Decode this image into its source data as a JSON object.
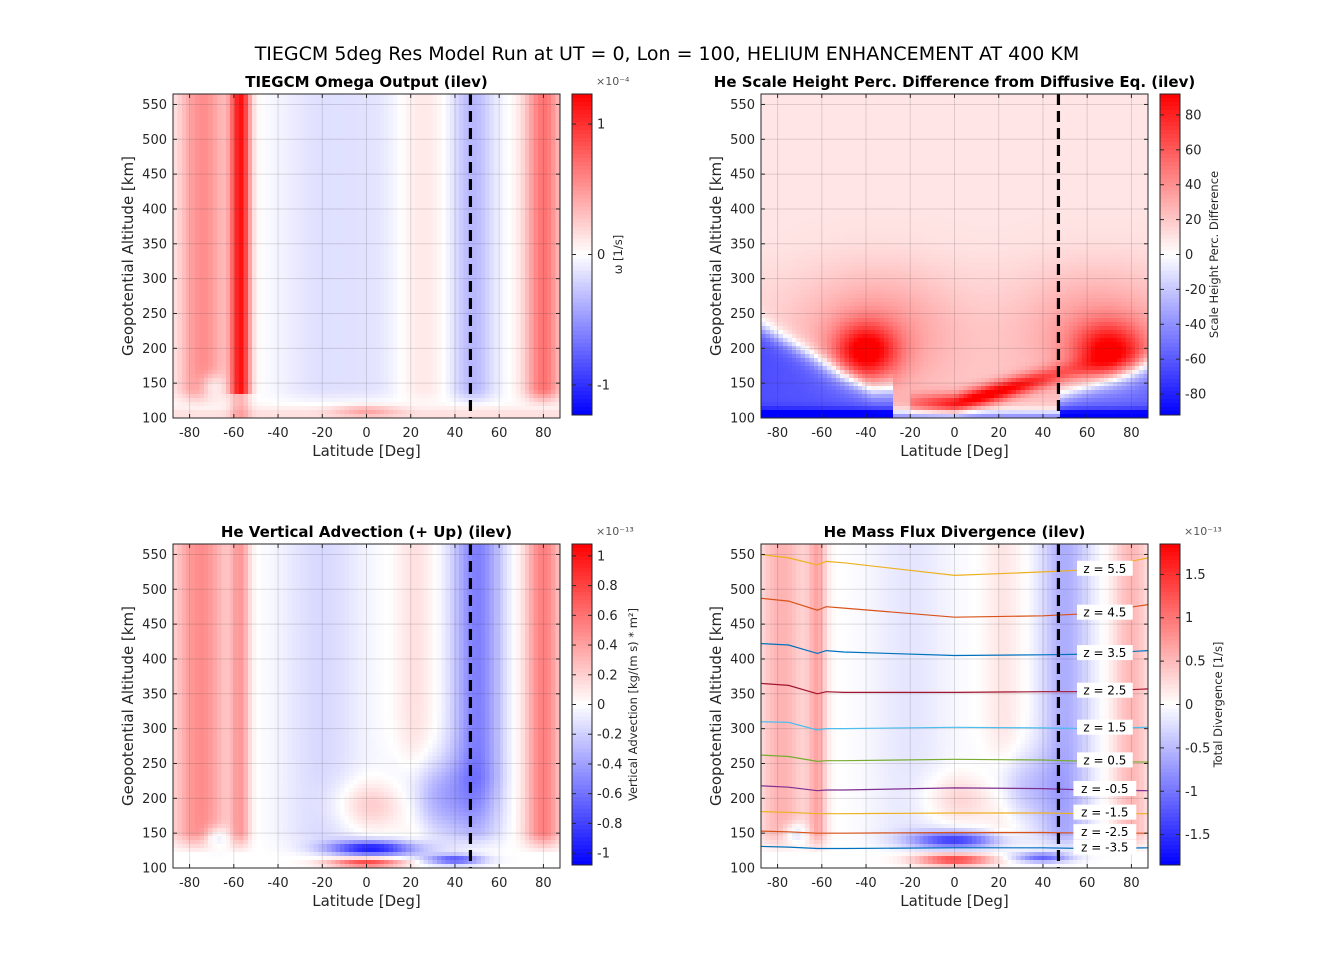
{
  "figure": {
    "title": "TIEGCM 5deg Res Model Run at UT = 0, Lon = 100, HELIUM ENHANCEMENT AT 400 KM"
  },
  "chart_data": [
    {
      "type": "heatmap",
      "title": "TIEGCM Omega Output (ilev)",
      "xlabel": "Latitude [Deg]",
      "ylabel": "Geopotential Altitude [km]",
      "xlim": [
        -87.5,
        87.5
      ],
      "ylim": [
        100,
        565
      ],
      "xticks": [
        -80,
        -60,
        -40,
        -20,
        0,
        20,
        40,
        60,
        80
      ],
      "yticks": [
        100,
        150,
        200,
        250,
        300,
        350,
        400,
        450,
        500,
        550
      ],
      "grid": true,
      "colormap": "blue-white-red",
      "colorbar": {
        "label": "ω [1/s]",
        "exponent": "×10⁻⁴",
        "ticks": [
          -1,
          0,
          1
        ],
        "clim": [
          -1.23,
          1.23
        ]
      },
      "vertical_line": {
        "x": 47,
        "style": "dashed",
        "color": "#000000"
      },
      "features": [
        {
          "lat": -57,
          "alt_range": [
            140,
            565
          ],
          "value": 1.1,
          "width": 4
        },
        {
          "lat": -75,
          "alt_range": [
            170,
            565
          ],
          "value": 0.55,
          "width": 10
        },
        {
          "lat": 80,
          "alt_range": [
            170,
            565
          ],
          "value": 0.65,
          "width": 8
        },
        {
          "lat": 47,
          "alt_range": [
            160,
            565
          ],
          "value": -0.35,
          "width": 9
        },
        {
          "lat": -20,
          "alt_range": [
            150,
            565
          ],
          "value": -0.15,
          "width": 15
        },
        {
          "lat": 0,
          "alt_range": [
            100,
            120
          ],
          "value": 0.3,
          "width": 10
        }
      ]
    },
    {
      "type": "heatmap",
      "title": "He Scale Height Perc. Difference from Diffusive Eq. (ilev)",
      "xlabel": "Latitude [Deg]",
      "ylabel": "Geopotential Altitude [km]",
      "xlim": [
        -87.5,
        87.5
      ],
      "ylim": [
        100,
        565
      ],
      "xticks": [
        -80,
        -60,
        -40,
        -20,
        0,
        20,
        40,
        60,
        80
      ],
      "yticks": [
        100,
        150,
        200,
        250,
        300,
        350,
        400,
        450,
        500,
        550
      ],
      "grid": true,
      "colormap": "blue-white-red",
      "colorbar": {
        "label": "Scale Height Perc. Difference",
        "exponent": "",
        "ticks": [
          -80,
          -60,
          -40,
          -20,
          0,
          20,
          40,
          60,
          80
        ],
        "clim": [
          -92,
          92
        ]
      },
      "vertical_line": {
        "x": 47,
        "style": "dashed",
        "color": "#000000"
      },
      "features": [
        {
          "lat": -40,
          "alt": 195,
          "value": 85,
          "note": "max near 200 km"
        },
        {
          "lat": 70,
          "alt": 195,
          "value": 80
        },
        {
          "lat": 10,
          "alt": 122,
          "value": 85
        },
        {
          "lat": -70,
          "alt": 140,
          "value": -70
        },
        {
          "lat": 75,
          "alt": 135,
          "value": -60
        },
        {
          "lat": 0,
          "alt": 450,
          "value": 10
        }
      ]
    },
    {
      "type": "heatmap",
      "title": "He Vertical Advection (+ Up) (ilev)",
      "xlabel": "Latitude [Deg]",
      "ylabel": "Geopotential Altitude [km]",
      "xlim": [
        -87.5,
        87.5
      ],
      "ylim": [
        100,
        565
      ],
      "xticks": [
        -80,
        -60,
        -40,
        -20,
        0,
        20,
        40,
        60,
        80
      ],
      "yticks": [
        100,
        150,
        200,
        250,
        300,
        350,
        400,
        450,
        500,
        550
      ],
      "grid": true,
      "colormap": "blue-white-red",
      "colorbar": {
        "label": "Vertical Advection [kg/(m s) * m²]",
        "exponent": "×10⁻¹³",
        "ticks": [
          -1,
          -0.8,
          -0.6,
          -0.4,
          -0.2,
          0,
          0.2,
          0.4,
          0.6,
          0.8,
          1
        ],
        "clim": [
          -1.08,
          1.08
        ]
      },
      "vertical_line": {
        "x": 47,
        "style": "dashed",
        "color": "#000000"
      },
      "features": [
        {
          "lat": -75,
          "alt_range": [
            170,
            565
          ],
          "value": 0.5
        },
        {
          "lat": 80,
          "alt_range": [
            170,
            565
          ],
          "value": 0.5
        },
        {
          "lat": 50,
          "alt_range": [
            150,
            565
          ],
          "value": -0.55
        },
        {
          "lat": 0,
          "alt": 128,
          "value": -0.95
        },
        {
          "lat": 0,
          "alt": 108,
          "value": 0.8
        },
        {
          "lat": 40,
          "alt": 112,
          "value": -0.7
        },
        {
          "lat": 0,
          "alt": 190,
          "value": 0.25
        },
        {
          "lat": 30,
          "alt": 200,
          "value": -0.35
        }
      ]
    },
    {
      "type": "heatmap",
      "title": "He Mass Flux Divergence (ilev)",
      "xlabel": "Latitude [Deg]",
      "ylabel": "Geopotential Altitude [km]",
      "xlim": [
        -87.5,
        87.5
      ],
      "ylim": [
        100,
        565
      ],
      "xticks": [
        -80,
        -60,
        -40,
        -20,
        0,
        20,
        40,
        60,
        80
      ],
      "yticks": [
        100,
        150,
        200,
        250,
        300,
        350,
        400,
        450,
        500,
        550
      ],
      "grid": true,
      "colormap": "blue-white-red",
      "colorbar": {
        "label": "Total Divergence [1/s]",
        "exponent": "×10⁻¹³",
        "ticks": [
          -1.5,
          -1,
          -0.5,
          0,
          0.5,
          1,
          1.5
        ],
        "clim": [
          -1.85,
          1.85
        ]
      },
      "vertical_line": {
        "x": 47,
        "style": "dashed",
        "color": "#000000"
      },
      "features": [
        {
          "lat": -72,
          "alt_range": [
            150,
            565
          ],
          "value": 0.55
        },
        {
          "lat": 80,
          "alt_range": [
            170,
            565
          ],
          "value": 0.5
        },
        {
          "lat": 50,
          "alt_range": [
            150,
            565
          ],
          "value": -0.4
        },
        {
          "lat": 0,
          "alt": 140,
          "value": -1.2
        },
        {
          "lat": 0,
          "alt": 112,
          "value": 1.3
        },
        {
          "lat": 40,
          "alt": 115,
          "value": -1.0
        }
      ],
      "pressure_levels": [
        {
          "name": "z = 5.5",
          "color": "#EDB120",
          "x": [
            -87.5,
            -75,
            -62,
            -58,
            -50,
            0,
            40,
            60,
            87.5
          ],
          "y": [
            550,
            545,
            535,
            540,
            538,
            520,
            525,
            528,
            545
          ]
        },
        {
          "name": "z = 4.5",
          "color": "#D95319",
          "x": [
            -87.5,
            -75,
            -62,
            -58,
            -50,
            0,
            40,
            60,
            87.5
          ],
          "y": [
            487,
            483,
            470,
            475,
            473,
            460,
            462,
            465,
            478
          ]
        },
        {
          "name": "z = 3.5",
          "color": "#0072BD",
          "x": [
            -87.5,
            -75,
            -62,
            -58,
            -50,
            0,
            40,
            60,
            87.5
          ],
          "y": [
            422,
            420,
            408,
            412,
            410,
            405,
            406,
            407,
            412
          ]
        },
        {
          "name": "z = 2.5",
          "color": "#A2142F",
          "x": [
            -87.5,
            -75,
            -62,
            -58,
            -50,
            0,
            40,
            60,
            87.5
          ],
          "y": [
            365,
            362,
            350,
            353,
            352,
            352,
            353,
            353,
            357
          ]
        },
        {
          "name": "z = 1.5",
          "color": "#4DBEEE",
          "x": [
            -87.5,
            -75,
            -62,
            -58,
            -50,
            0,
            40,
            60,
            87.5
          ],
          "y": [
            310,
            309,
            298,
            300,
            300,
            302,
            301,
            300,
            302
          ]
        },
        {
          "name": "z = 0.5",
          "color": "#77AC30",
          "x": [
            -87.5,
            -75,
            -62,
            -58,
            -50,
            0,
            40,
            60,
            87.5
          ],
          "y": [
            262,
            260,
            253,
            254,
            254,
            256,
            255,
            253,
            252
          ]
        },
        {
          "name": "z = -0.5",
          "color": "#7E2F8E",
          "x": [
            -87.5,
            -75,
            -62,
            -58,
            -50,
            0,
            40,
            60,
            87.5
          ],
          "y": [
            218,
            216,
            211,
            212,
            212,
            215,
            214,
            212,
            211
          ]
        },
        {
          "name": "z = -1.5",
          "color": "#EDB120",
          "x": [
            -87.5,
            -75,
            -62,
            -58,
            -50,
            0,
            40,
            60,
            87.5
          ],
          "y": [
            181,
            180,
            178,
            178,
            178,
            179,
            179,
            178,
            178
          ]
        },
        {
          "name": "z = -2.5",
          "color": "#D95319",
          "x": [
            -87.5,
            -75,
            -62,
            -58,
            -50,
            0,
            40,
            60,
            87.5
          ],
          "y": [
            153,
            152,
            150,
            150,
            150,
            151,
            151,
            150,
            150
          ]
        },
        {
          "name": "z = -3.5",
          "color": "#0072BD",
          "x": [
            -87.5,
            -75,
            -62,
            -58,
            -50,
            0,
            40,
            60,
            87.5
          ],
          "y": [
            131,
            130,
            128,
            128,
            128,
            129,
            129,
            128,
            129
          ]
        }
      ]
    }
  ]
}
